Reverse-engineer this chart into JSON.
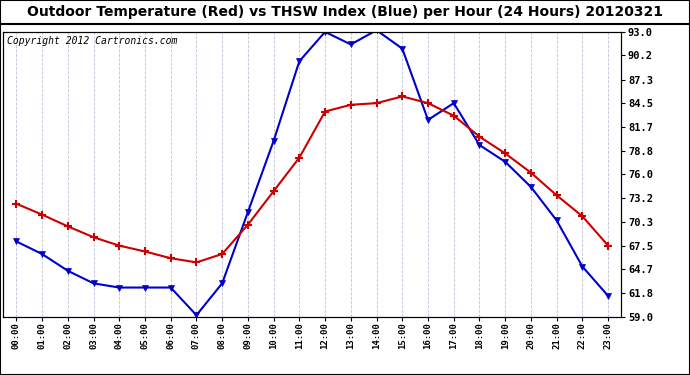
{
  "title": "Outdoor Temperature (Red) vs THSW Index (Blue) per Hour (24 Hours) 20120321",
  "copyright": "Copyright 2012 Cartronics.com",
  "hours": [
    "00:00",
    "01:00",
    "02:00",
    "03:00",
    "04:00",
    "05:00",
    "06:00",
    "07:00",
    "08:00",
    "09:00",
    "10:00",
    "11:00",
    "12:00",
    "13:00",
    "14:00",
    "15:00",
    "16:00",
    "17:00",
    "18:00",
    "19:00",
    "20:00",
    "21:00",
    "22:00",
    "23:00"
  ],
  "red_temp": [
    72.5,
    71.2,
    69.8,
    68.5,
    67.5,
    66.8,
    66.0,
    65.5,
    66.5,
    70.0,
    74.0,
    78.0,
    83.5,
    84.3,
    84.5,
    85.3,
    84.5,
    83.0,
    80.5,
    78.5,
    76.2,
    73.5,
    71.0,
    67.5
  ],
  "blue_thsw": [
    68.0,
    66.5,
    64.5,
    63.0,
    62.5,
    62.5,
    62.5,
    59.2,
    63.0,
    71.5,
    80.0,
    89.5,
    93.0,
    91.5,
    93.2,
    91.0,
    82.5,
    84.5,
    79.5,
    77.5,
    74.5,
    70.5,
    65.0,
    61.5
  ],
  "y_ticks": [
    59.0,
    61.8,
    64.7,
    67.5,
    70.3,
    73.2,
    76.0,
    78.8,
    81.7,
    84.5,
    87.3,
    90.2,
    93.0
  ],
  "bg_color": "#ffffff",
  "grid_color": "#b0b0cc",
  "red_color": "#cc0000",
  "blue_color": "#0000cc",
  "title_fontsize": 10,
  "copyright_fontsize": 7
}
